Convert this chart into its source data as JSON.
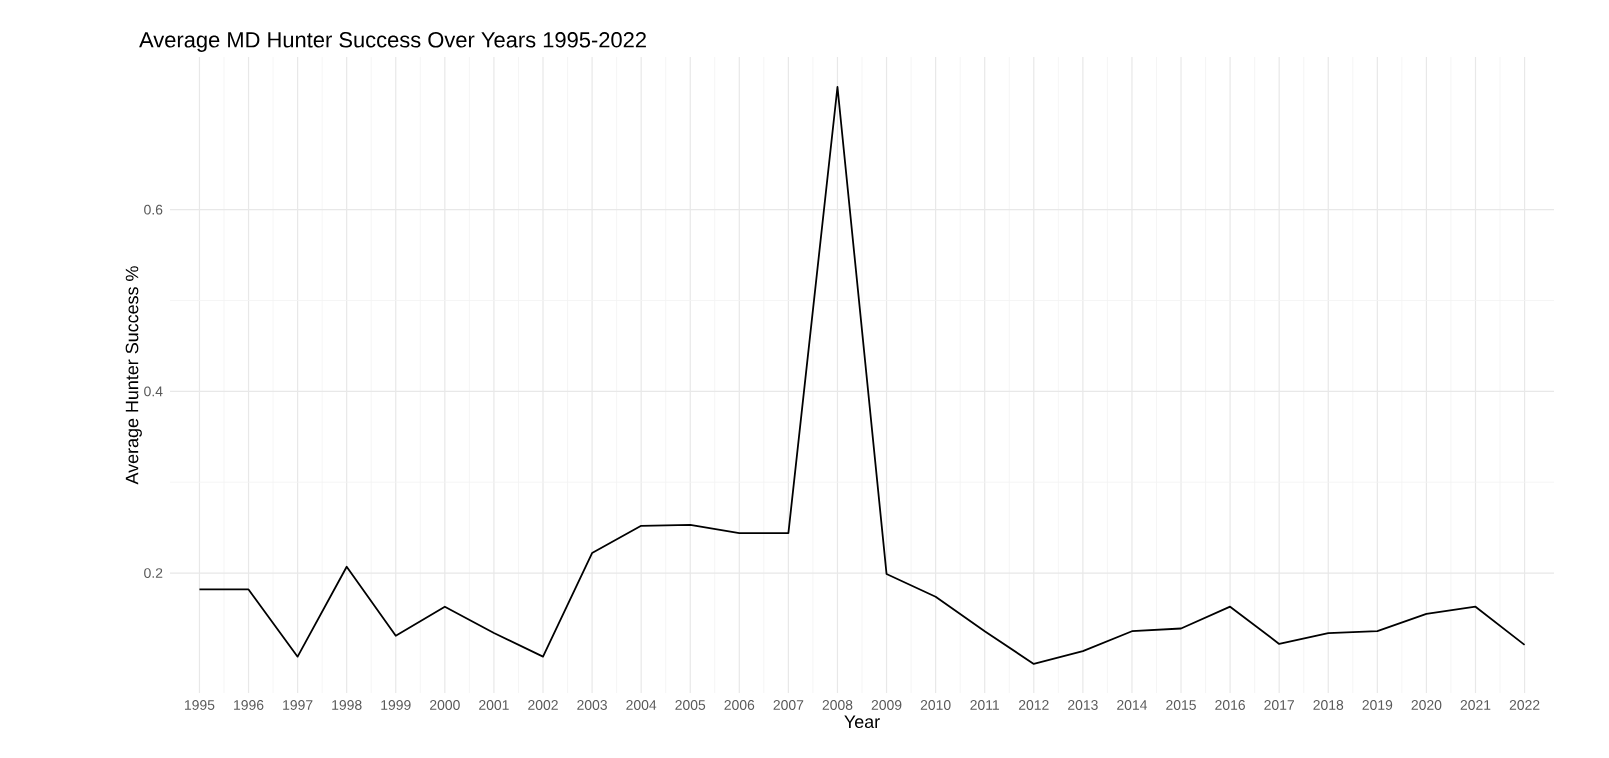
{
  "chart_data": {
    "type": "line",
    "title": "Average MD Hunter Success Over Years 1995-2022",
    "xlabel": "Year",
    "ylabel": "Average Hunter Success %",
    "categories": [
      "1995",
      "1996",
      "1997",
      "1998",
      "1999",
      "2000",
      "2001",
      "2002",
      "2003",
      "2004",
      "2005",
      "2006",
      "2007",
      "2008",
      "2009",
      "2010",
      "2011",
      "2012",
      "2013",
      "2014",
      "2015",
      "2016",
      "2017",
      "2018",
      "2019",
      "2020",
      "2021",
      "2022"
    ],
    "series": [
      {
        "color": "#000000",
        "values": [
          0.182,
          0.182,
          0.108,
          0.207,
          0.131,
          0.163,
          0.134,
          0.108,
          0.222,
          0.252,
          0.253,
          0.244,
          0.244,
          0.735,
          0.199,
          0.174,
          0.136,
          0.1,
          0.114,
          0.136,
          0.139,
          0.163,
          0.122,
          0.134,
          0.136,
          0.155,
          0.163,
          0.121
        ]
      }
    ],
    "ylim": [
      0.068,
      0.768
    ],
    "yticks": [
      0.2,
      0.4,
      0.6
    ],
    "grid": true,
    "marker": "none",
    "line_style": "solid"
  }
}
